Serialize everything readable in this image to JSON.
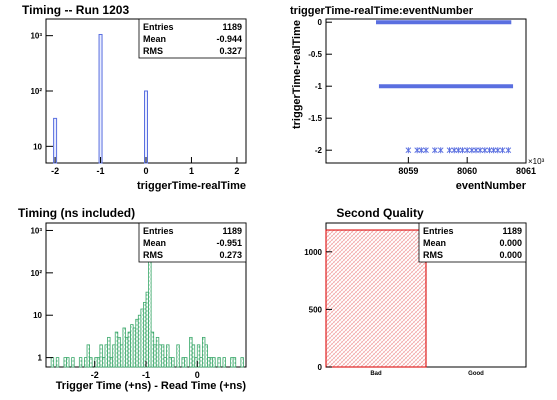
{
  "colors": {
    "blue": "#5a6fe0",
    "green": "#3aa86a",
    "red": "#e02020",
    "axis": "#000000"
  },
  "chart_data": [
    {
      "type": "bar",
      "title": "Timing -- Run 1203",
      "xlabel": "triggerTime-realTime",
      "ylabel": "",
      "y_scale": "log",
      "xlim": [
        -2.2,
        2.2
      ],
      "ylim": [
        5,
        2000
      ],
      "x_ticks": [
        "-2",
        "-1",
        "0",
        "1",
        "2"
      ],
      "y_ticks": [
        "10",
        "10²",
        "10³"
      ],
      "stats": {
        "entries_label": "Entries",
        "entries": "1189",
        "mean_label": "Mean",
        "mean": "-0.944",
        "rms_label": "RMS",
        "rms": "0.327"
      },
      "bars": [
        {
          "x": -2.0,
          "value": 32
        },
        {
          "x": -1.0,
          "value": 1050
        },
        {
          "x": 0.0,
          "value": 100
        }
      ]
    },
    {
      "type": "scatter",
      "title": "triggerTime-realTime:eventNumber",
      "xlabel": "eventNumber",
      "ylabel": "triggerTime-realTime",
      "x_exponent": "×10³",
      "xlim": [
        8057.6,
        8061
      ],
      "ylim": [
        -2.2,
        0.05
      ],
      "x_ticks": [
        "8059",
        "8060",
        "8061"
      ],
      "y_ticks": [
        "0",
        "-0.5",
        "-1",
        "-1.5",
        "-2"
      ],
      "segments": [
        {
          "y": 0,
          "x_start": 8058.45,
          "x_end": 8060.75
        },
        {
          "y": -1,
          "x_start": 8058.5,
          "x_end": 8060.78
        }
      ],
      "points": [
        {
          "x": 8059.0,
          "y": -2
        },
        {
          "x": 8059.15,
          "y": -2
        },
        {
          "x": 8059.22,
          "y": -2
        },
        {
          "x": 8059.3,
          "y": -2
        },
        {
          "x": 8059.45,
          "y": -2
        },
        {
          "x": 8059.55,
          "y": -2
        },
        {
          "x": 8059.7,
          "y": -2
        },
        {
          "x": 8059.78,
          "y": -2
        },
        {
          "x": 8059.85,
          "y": -2
        },
        {
          "x": 8059.92,
          "y": -2
        },
        {
          "x": 8060.0,
          "y": -2
        },
        {
          "x": 8060.08,
          "y": -2
        },
        {
          "x": 8060.15,
          "y": -2
        },
        {
          "x": 8060.22,
          "y": -2
        },
        {
          "x": 8060.3,
          "y": -2
        },
        {
          "x": 8060.38,
          "y": -2
        },
        {
          "x": 8060.45,
          "y": -2
        },
        {
          "x": 8060.52,
          "y": -2
        },
        {
          "x": 8060.6,
          "y": -2
        },
        {
          "x": 8060.7,
          "y": -2
        }
      ]
    },
    {
      "type": "bar",
      "title": "Timing (ns included)",
      "xlabel": "Trigger Time (+ns) - Read Time (+ns)",
      "ylabel": "",
      "y_scale": "log",
      "xlim": [
        -2.95,
        0.95
      ],
      "ylim": [
        0.6,
        1500
      ],
      "x_ticks": [
        "-2",
        "-1",
        "0"
      ],
      "y_ticks": [
        "1",
        "10",
        "10²",
        "10³"
      ],
      "stats": {
        "entries_label": "Entries",
        "entries": "1189",
        "mean_label": "Mean",
        "mean": "-0.951",
        "rms_label": "RMS",
        "rms": "0.273"
      },
      "bin_start": -2.95,
      "bin_width": 0.05,
      "values": [
        0,
        0,
        1,
        0,
        1,
        0,
        0,
        1,
        1,
        0,
        1,
        0,
        0,
        1,
        0,
        1,
        2,
        1,
        0,
        1,
        1,
        2,
        1,
        2,
        3,
        1,
        2,
        4,
        3,
        2,
        5,
        3,
        4,
        6,
        5,
        8,
        10,
        14,
        20,
        35,
        1000,
        4,
        2,
        3,
        2,
        2,
        1,
        2,
        1,
        1,
        0,
        2,
        0,
        1,
        1,
        0,
        3,
        2,
        1,
        2,
        1,
        3,
        2,
        1,
        1,
        1,
        0,
        1,
        0,
        1,
        0,
        0,
        1,
        1,
        0,
        0,
        1,
        0
      ]
    },
    {
      "type": "bar",
      "title": "Second Quality",
      "xlabel": "",
      "ylabel": "",
      "ylim": [
        0,
        1250
      ],
      "y_ticks": [
        "0",
        "500",
        "1000"
      ],
      "categories": [
        "Bad",
        "Good"
      ],
      "values": [
        1189,
        0
      ],
      "stats": {
        "entries_label": "Entries",
        "entries": "1189",
        "mean_label": "Mean",
        "mean": "0.000",
        "rms_label": "RMS",
        "rms": "0.000"
      }
    }
  ]
}
